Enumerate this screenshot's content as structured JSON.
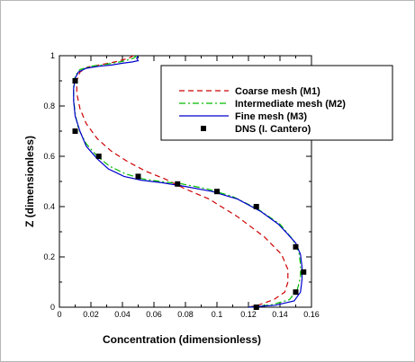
{
  "chart_data": {
    "type": "line",
    "title": "",
    "xlabel": "Concentration (dimensionless)",
    "ylabel": "Z (dimensionless)",
    "xlim": [
      0,
      0.16
    ],
    "ylim": [
      0,
      1
    ],
    "x_ticks": [
      "0",
      "0.02",
      "0.04",
      "0.06",
      "0.08",
      "0.1",
      "0.12",
      "0.14",
      "0.16"
    ],
    "y_ticks": [
      "0",
      "0.2",
      "0.4",
      "0.6",
      "0.8",
      "1"
    ],
    "x_tick_values": [
      0,
      0.02,
      0.04,
      0.06,
      0.08,
      0.1,
      0.12,
      0.14,
      0.16
    ],
    "y_tick_values": [
      0,
      0.2,
      0.4,
      0.6,
      0.8,
      1
    ],
    "legend_position": "top-right",
    "grid": false,
    "series": [
      {
        "name": "Coarse mesh (M1)",
        "style": "dashed",
        "color": "#cc0000",
        "points": [
          [
            0.12,
            0.0
          ],
          [
            0.127,
            0.01
          ],
          [
            0.136,
            0.03
          ],
          [
            0.143,
            0.06
          ],
          [
            0.145,
            0.1
          ],
          [
            0.145,
            0.15
          ],
          [
            0.141,
            0.21
          ],
          [
            0.13,
            0.28
          ],
          [
            0.113,
            0.36
          ],
          [
            0.095,
            0.43
          ],
          [
            0.08,
            0.47
          ],
          [
            0.067,
            0.51
          ],
          [
            0.055,
            0.54
          ],
          [
            0.043,
            0.58
          ],
          [
            0.033,
            0.62
          ],
          [
            0.024,
            0.67
          ],
          [
            0.017,
            0.73
          ],
          [
            0.013,
            0.79
          ],
          [
            0.011,
            0.85
          ],
          [
            0.011,
            0.9
          ],
          [
            0.013,
            0.935
          ],
          [
            0.018,
            0.955
          ],
          [
            0.027,
            0.965
          ],
          [
            0.035,
            0.975
          ],
          [
            0.044,
            0.99
          ],
          [
            0.047,
            1.0
          ]
        ]
      },
      {
        "name": "Intermediate mesh (M2)",
        "style": "dashdot",
        "color": "#00bb00",
        "points": [
          [
            0.12,
            0.0
          ],
          [
            0.135,
            0.01
          ],
          [
            0.146,
            0.03
          ],
          [
            0.151,
            0.07
          ],
          [
            0.153,
            0.12
          ],
          [
            0.153,
            0.17
          ],
          [
            0.152,
            0.22
          ],
          [
            0.148,
            0.27
          ],
          [
            0.14,
            0.33
          ],
          [
            0.126,
            0.39
          ],
          [
            0.11,
            0.44
          ],
          [
            0.094,
            0.47
          ],
          [
            0.078,
            0.49
          ],
          [
            0.064,
            0.5
          ],
          [
            0.053,
            0.51
          ],
          [
            0.042,
            0.53
          ],
          [
            0.032,
            0.56
          ],
          [
            0.024,
            0.6
          ],
          [
            0.017,
            0.65
          ],
          [
            0.012,
            0.71
          ],
          [
            0.01,
            0.77
          ],
          [
            0.009,
            0.83
          ],
          [
            0.009,
            0.88
          ],
          [
            0.01,
            0.92
          ],
          [
            0.013,
            0.945
          ],
          [
            0.02,
            0.958
          ],
          [
            0.03,
            0.966
          ],
          [
            0.04,
            0.977
          ],
          [
            0.047,
            0.99
          ],
          [
            0.049,
            1.0
          ]
        ]
      },
      {
        "name": "Fine mesh (M3)",
        "style": "solid",
        "color": "#0000cc",
        "points": [
          [
            0.12,
            0.0
          ],
          [
            0.137,
            0.008
          ],
          [
            0.149,
            0.025
          ],
          [
            0.153,
            0.06
          ],
          [
            0.154,
            0.11
          ],
          [
            0.154,
            0.16
          ],
          [
            0.153,
            0.21
          ],
          [
            0.15,
            0.255
          ],
          [
            0.145,
            0.29
          ],
          [
            0.139,
            0.33
          ],
          [
            0.128,
            0.38
          ],
          [
            0.113,
            0.43
          ],
          [
            0.097,
            0.46
          ],
          [
            0.08,
            0.48
          ],
          [
            0.065,
            0.495
          ],
          [
            0.052,
            0.505
          ],
          [
            0.041,
            0.52
          ],
          [
            0.031,
            0.55
          ],
          [
            0.024,
            0.59
          ],
          [
            0.017,
            0.64
          ],
          [
            0.013,
            0.7
          ],
          [
            0.01,
            0.76
          ],
          [
            0.009,
            0.82
          ],
          [
            0.009,
            0.87
          ],
          [
            0.01,
            0.91
          ],
          [
            0.012,
            0.935
          ],
          [
            0.017,
            0.95
          ],
          [
            0.025,
            0.958
          ],
          [
            0.033,
            0.963
          ],
          [
            0.04,
            0.97
          ],
          [
            0.046,
            0.975
          ],
          [
            0.05,
            0.98
          ],
          [
            0.049,
            0.99
          ],
          [
            0.05,
            1.0
          ]
        ]
      }
    ],
    "markers": {
      "name": "DNS (I. Cantero)",
      "symbol": "square",
      "color": "#000000",
      "points": [
        [
          0.125,
          0.0
        ],
        [
          0.15,
          0.06
        ],
        [
          0.155,
          0.14
        ],
        [
          0.15,
          0.24
        ],
        [
          0.125,
          0.4
        ],
        [
          0.1,
          0.46
        ],
        [
          0.075,
          0.49
        ],
        [
          0.05,
          0.52
        ],
        [
          0.025,
          0.6
        ],
        [
          0.01,
          0.7
        ],
        [
          0.01,
          0.9
        ]
      ]
    }
  }
}
